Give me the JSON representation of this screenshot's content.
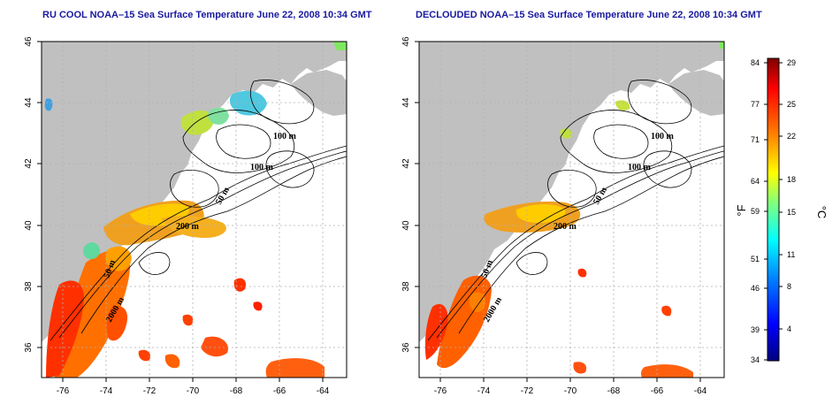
{
  "panels": [
    {
      "title": "RU COOL NOAA–15 Sea Surface Temperature June 22, 2008 10:34 GMT",
      "contour_labels": [
        "100 m",
        "100 m",
        "50 m",
        "200 m",
        "50 m",
        "2000 m"
      ]
    },
    {
      "title": "DECLOUDED NOAA–15 Sea Surface Temperature June 22, 2008 10:34 GMT",
      "contour_labels": [
        "100 m",
        "100 m",
        "50 m",
        "200 m",
        "50 m",
        "2000 m"
      ]
    }
  ],
  "x_ticks": [
    "-76",
    "-74",
    "-72",
    "-70",
    "-68",
    "-66",
    "-64"
  ],
  "y_ticks": [
    "46",
    "44",
    "42",
    "40",
    "38",
    "36"
  ],
  "colorbar": {
    "fahrenheit_ticks": [
      "84",
      "77",
      "71",
      "64",
      "59",
      "51",
      "46",
      "39",
      "34"
    ],
    "celsius_ticks": [
      "29",
      "25",
      "22",
      "18",
      "15",
      "11",
      "8",
      "4"
    ],
    "unit_f": "°F",
    "unit_c": "°C",
    "colors": [
      "#000080",
      "#0000ff",
      "#0080ff",
      "#00ffff",
      "#80ff80",
      "#ffff00",
      "#ff8000",
      "#ff0000",
      "#800000"
    ]
  },
  "colors": {
    "land": "#c0c0c0",
    "title": "#1a1aa0"
  }
}
